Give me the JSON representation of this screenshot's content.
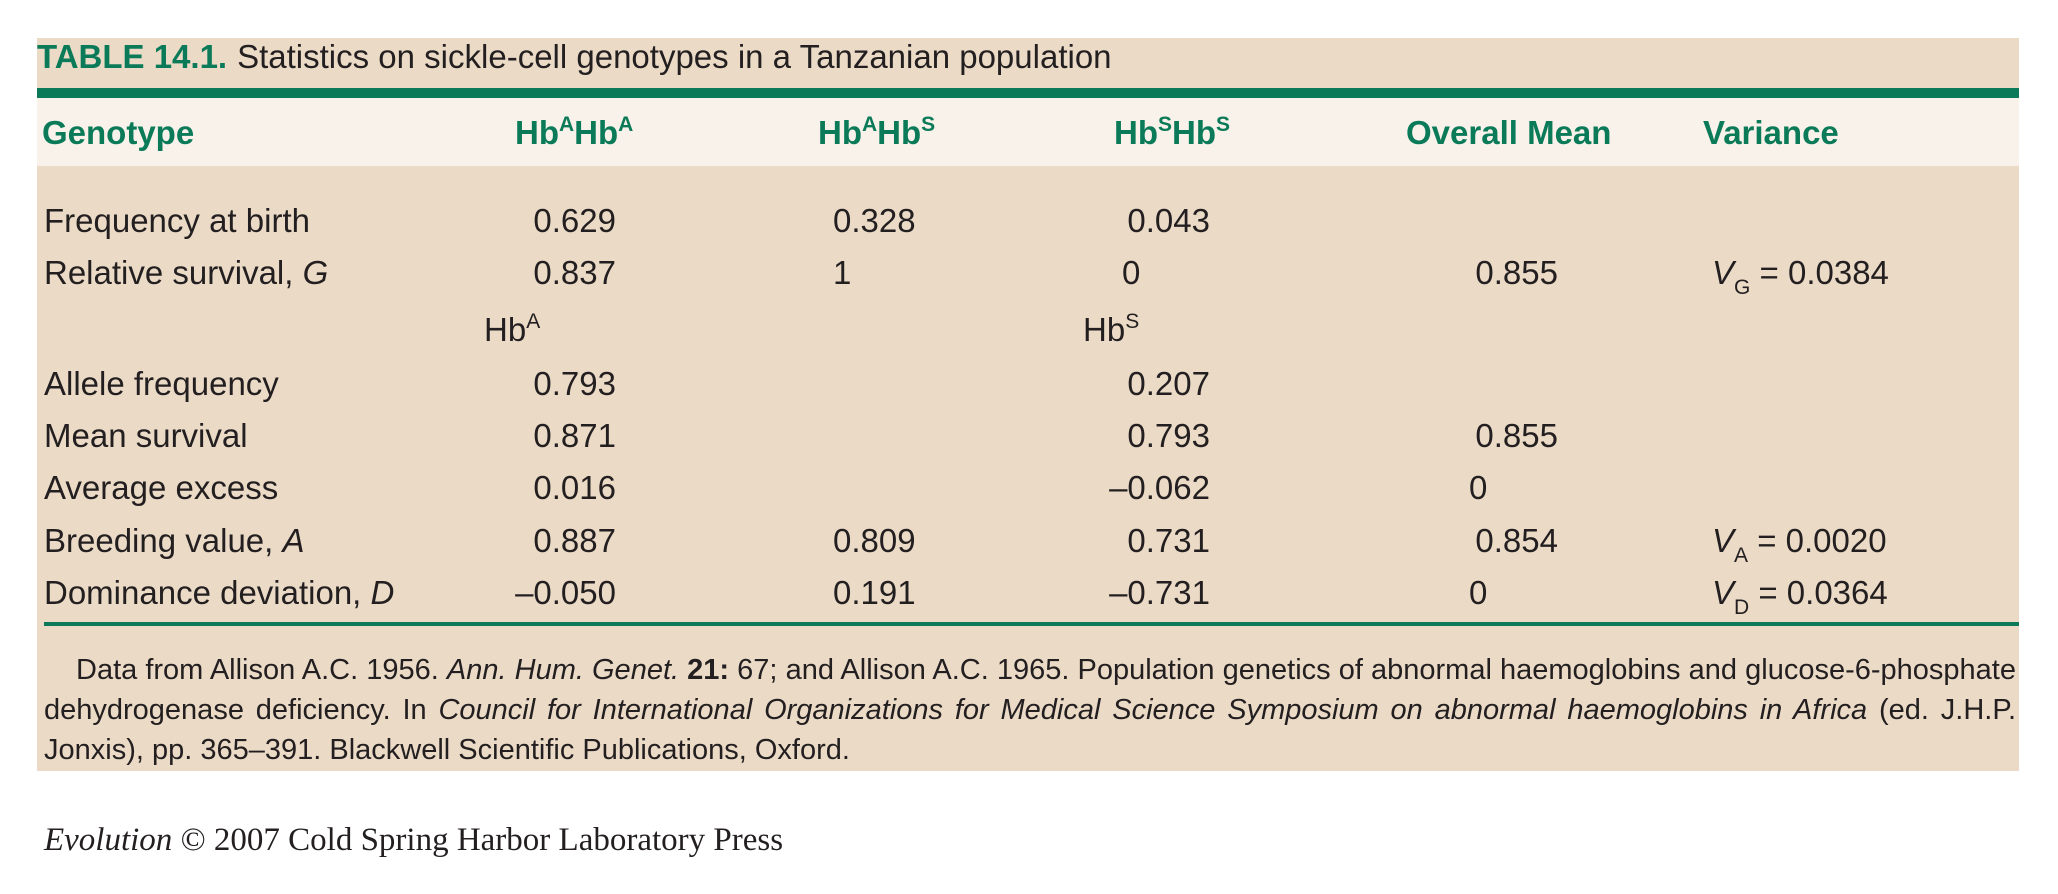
{
  "table": {
    "number": "TABLE 14.1.",
    "caption": "Statistics on sickle-cell genotypes in a Tanzanian population",
    "headers": {
      "genotype": "Genotype",
      "aa_base1": "Hb",
      "aa_sup1": "A",
      "aa_base2": "Hb",
      "aa_sup2": "A",
      "as_base1": "Hb",
      "as_sup1": "A",
      "as_base2": "Hb",
      "as_sup2": "S",
      "ss_base1": "Hb",
      "ss_sup1": "S",
      "ss_base2": "Hb",
      "ss_sup2": "S",
      "overall_mean": "Overall Mean",
      "variance": "Variance"
    },
    "allele_headers": {
      "a_base": "Hb",
      "a_sup": "A",
      "s_base": "Hb",
      "s_sup": "S"
    },
    "rows": {
      "freq_birth": {
        "label": "Frequency at birth",
        "aa": "0.629",
        "as": "0.328",
        "ss": "0.043"
      },
      "rel_survival": {
        "label": "Relative survival, ",
        "label_var": "G",
        "aa": "0.837",
        "as": "1",
        "ss": "0",
        "mean": "0.855",
        "var_sym": "V",
        "var_sub": "G",
        "var_val": " = 0.0384"
      },
      "allele_freq": {
        "label": "Allele frequency",
        "a": "0.793",
        "s": "0.207"
      },
      "mean_survival": {
        "label": "Mean survival",
        "a": "0.871",
        "s": "0.793",
        "mean": "0.855"
      },
      "avg_excess": {
        "label": "Average excess",
        "a": "0.016",
        "s": "–0.062",
        "mean": "0"
      },
      "breeding": {
        "label": "Breeding value, ",
        "label_var": "A",
        "aa": "0.887",
        "as": "0.809",
        "ss": "0.731",
        "mean": "0.854",
        "var_sym": "V",
        "var_sub": "A",
        "var_val": " = 0.0020"
      },
      "dominance": {
        "label": "Dominance deviation, ",
        "label_var": "D",
        "aa": "–0.050",
        "as": "0.191",
        "ss": "–0.731",
        "mean": "0",
        "var_sym": "V",
        "var_sub": "D",
        "var_val": " = 0.0364"
      }
    },
    "footnote": {
      "p1": "Data from Allison A.C. 1956. ",
      "journal": "Ann. Hum. Genet.",
      "volume": "21:",
      "p2": " 67; and Allison A.C. 1965. Population genetics of abnormal haemoglobins and glucose-6-phosphate dehydrogenase deficiency. In ",
      "book": "Council for International Organizations for Medical Science Symposium on abnormal haemoglobins in Africa",
      "p3": " (ed. J.H.P. Jonxis), pp. 365–391. Blackwell Scientific Publications, Oxford."
    }
  },
  "credit": {
    "book": "Evolution",
    "text": " © 2007 Cold Spring Harbor Laboratory Press"
  },
  "colors": {
    "accent": "#0b7a58",
    "panel": "#eadac6",
    "header_band": "#f8f2ea"
  }
}
